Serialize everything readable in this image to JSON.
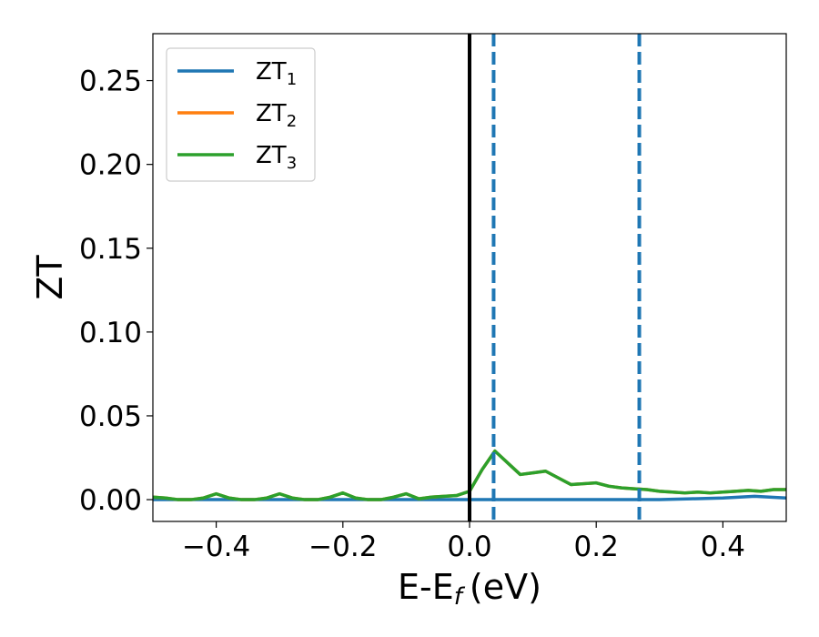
{
  "chart_data": {
    "type": "line",
    "xlabel": "E-E",
    "xlabel_sub": "f",
    "xlabel_unit": "(eV)",
    "ylabel": "ZT",
    "xlim": [
      -0.5,
      0.5
    ],
    "ylim": [
      -0.013,
      0.278
    ],
    "xticks": [
      -0.4,
      -0.2,
      0.0,
      0.2,
      0.4
    ],
    "xtick_labels": [
      "−0.4",
      "−0.2",
      "0.0",
      "0.2",
      "0.4"
    ],
    "yticks": [
      0.0,
      0.05,
      0.1,
      0.15,
      0.2,
      0.25
    ],
    "ytick_labels": [
      "0.00",
      "0.05",
      "0.10",
      "0.15",
      "0.20",
      "0.25"
    ],
    "grid": false,
    "legend_position": "top-left",
    "vlines": [
      {
        "x": 0.0,
        "color": "#000000",
        "style": "solid"
      },
      {
        "x": 0.038,
        "color": "#1f77b4",
        "style": "dashed"
      },
      {
        "x": 0.268,
        "color": "#1f77b4",
        "style": "dashed"
      }
    ],
    "series": [
      {
        "name": "ZT",
        "name_sub": "1",
        "color": "#1f77b4",
        "x": [
          -0.5,
          -0.4,
          -0.3,
          -0.2,
          -0.1,
          0.0,
          0.1,
          0.2,
          0.3,
          0.35,
          0.4,
          0.45,
          0.5
        ],
        "y": [
          0.0,
          0.0,
          0.0,
          0.0,
          0.0,
          0.0,
          0.0,
          0.0,
          0.0,
          0.0005,
          0.001,
          0.002,
          0.001
        ]
      },
      {
        "name": "ZT",
        "name_sub": "2",
        "color": "#ff7f0e",
        "x": [
          -0.5,
          -0.48,
          -0.46,
          -0.44,
          -0.42,
          -0.4,
          -0.38,
          -0.36,
          -0.34,
          -0.32,
          -0.3,
          -0.28,
          -0.26,
          -0.24,
          -0.22,
          -0.2,
          -0.18,
          -0.16,
          -0.14,
          -0.12,
          -0.1,
          -0.08,
          -0.06,
          -0.04,
          -0.02,
          0.0,
          0.02,
          0.04,
          0.06,
          0.08,
          0.1,
          0.12,
          0.14,
          0.16,
          0.18,
          0.2,
          0.22,
          0.24,
          0.26,
          0.28,
          0.3,
          0.32,
          0.34,
          0.36,
          0.38,
          0.4,
          0.42,
          0.44,
          0.46,
          0.48,
          0.5
        ],
        "y": [
          0.0015,
          0.001,
          0.0,
          0.0,
          0.001,
          0.0035,
          0.001,
          0.0,
          0.0,
          0.001,
          0.0035,
          0.001,
          0.0,
          0.0,
          0.0015,
          0.004,
          0.001,
          0.0,
          0.0,
          0.0015,
          0.0035,
          0.0005,
          0.0015,
          0.002,
          0.0025,
          0.005,
          0.018,
          0.029,
          0.022,
          0.015,
          0.016,
          0.017,
          0.013,
          0.009,
          0.0095,
          0.01,
          0.008,
          0.007,
          0.0065,
          0.006,
          0.005,
          0.0045,
          0.004,
          0.0045,
          0.004,
          0.0045,
          0.005,
          0.0055,
          0.005,
          0.006,
          0.006
        ]
      },
      {
        "name": "ZT",
        "name_sub": "3",
        "color": "#2ca02c",
        "x": [
          -0.5,
          -0.48,
          -0.46,
          -0.44,
          -0.42,
          -0.4,
          -0.38,
          -0.36,
          -0.34,
          -0.32,
          -0.3,
          -0.28,
          -0.26,
          -0.24,
          -0.22,
          -0.2,
          -0.18,
          -0.16,
          -0.14,
          -0.12,
          -0.1,
          -0.08,
          -0.06,
          -0.04,
          -0.02,
          0.0,
          0.02,
          0.04,
          0.06,
          0.08,
          0.1,
          0.12,
          0.14,
          0.16,
          0.18,
          0.2,
          0.22,
          0.24,
          0.26,
          0.28,
          0.3,
          0.32,
          0.34,
          0.36,
          0.38,
          0.4,
          0.42,
          0.44,
          0.46,
          0.48,
          0.5
        ],
        "y": [
          0.0015,
          0.001,
          0.0,
          0.0,
          0.001,
          0.0035,
          0.001,
          0.0,
          0.0,
          0.001,
          0.0035,
          0.001,
          0.0,
          0.0,
          0.0015,
          0.004,
          0.001,
          0.0,
          0.0,
          0.0015,
          0.0035,
          0.0005,
          0.0015,
          0.002,
          0.0025,
          0.005,
          0.018,
          0.029,
          0.022,
          0.015,
          0.016,
          0.017,
          0.013,
          0.009,
          0.0095,
          0.01,
          0.008,
          0.007,
          0.0065,
          0.006,
          0.005,
          0.0045,
          0.004,
          0.0045,
          0.004,
          0.0045,
          0.005,
          0.0055,
          0.005,
          0.006,
          0.006
        ]
      }
    ]
  }
}
